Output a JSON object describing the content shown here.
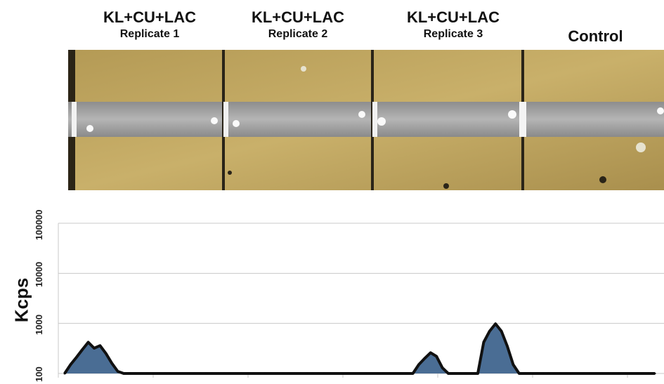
{
  "headers": [
    {
      "main": "KL+CU+LAC",
      "sub": "Replicate 1"
    },
    {
      "main": "KL+CU+LAC",
      "sub": "Replicate 2"
    },
    {
      "main": "KL+CU+LAC",
      "sub": "Replicate 3"
    },
    {
      "main": "Control",
      "sub": ""
    }
  ],
  "chart_data": {
    "type": "area",
    "title": "",
    "xlabel": "",
    "ylabel": "Kcps",
    "yscale": "log",
    "ylim": [
      100,
      100000
    ],
    "yticks": [
      "100000",
      "10000",
      "1000",
      "100"
    ],
    "grid": true,
    "colors": {
      "fill": "#4a6d94",
      "stroke": "#111111"
    },
    "x": [
      0,
      2,
      4,
      6,
      8,
      10,
      12,
      14,
      16,
      18,
      20,
      22,
      24,
      26,
      28,
      30,
      32,
      34,
      36,
      38,
      40,
      42,
      44,
      46,
      48,
      50,
      52,
      54,
      56,
      58,
      60,
      62,
      64,
      66,
      68,
      70,
      72,
      74,
      76,
      78,
      80,
      82,
      84,
      86,
      88,
      90,
      92,
      94,
      96,
      98,
      100,
      102,
      104,
      106,
      108,
      110,
      112,
      114,
      116,
      118,
      120,
      122,
      124,
      126,
      128,
      130,
      132,
      134,
      136,
      138,
      140,
      142,
      144,
      146,
      148,
      150,
      152,
      154,
      156,
      158,
      160,
      162,
      164,
      166,
      168,
      170,
      172,
      174,
      176,
      178,
      180,
      182,
      184,
      186,
      188,
      190,
      192,
      194,
      196,
      198,
      200
    ],
    "series": [
      {
        "values": [
          100,
          150,
          210,
          300,
          420,
          320,
          360,
          250,
          160,
          110,
          100,
          100,
          100,
          100,
          100,
          100,
          100,
          100,
          100,
          100,
          100,
          100,
          100,
          100,
          100,
          100,
          100,
          100,
          100,
          100,
          100,
          100,
          100,
          100,
          100,
          100,
          100,
          100,
          100,
          100,
          100,
          100,
          100,
          100,
          100,
          100,
          100,
          100,
          100,
          100,
          100,
          100,
          100,
          100,
          100,
          100,
          100,
          100,
          100,
          100,
          150,
          200,
          260,
          220,
          130,
          100,
          100,
          100,
          100,
          100,
          100,
          420,
          700,
          980,
          700,
          350,
          150,
          100,
          100,
          100,
          100,
          100,
          100,
          100,
          100,
          100,
          100,
          100,
          100,
          100,
          100,
          100,
          100,
          100,
          100,
          100,
          100,
          100,
          100,
          100,
          100
        ]
      }
    ]
  }
}
